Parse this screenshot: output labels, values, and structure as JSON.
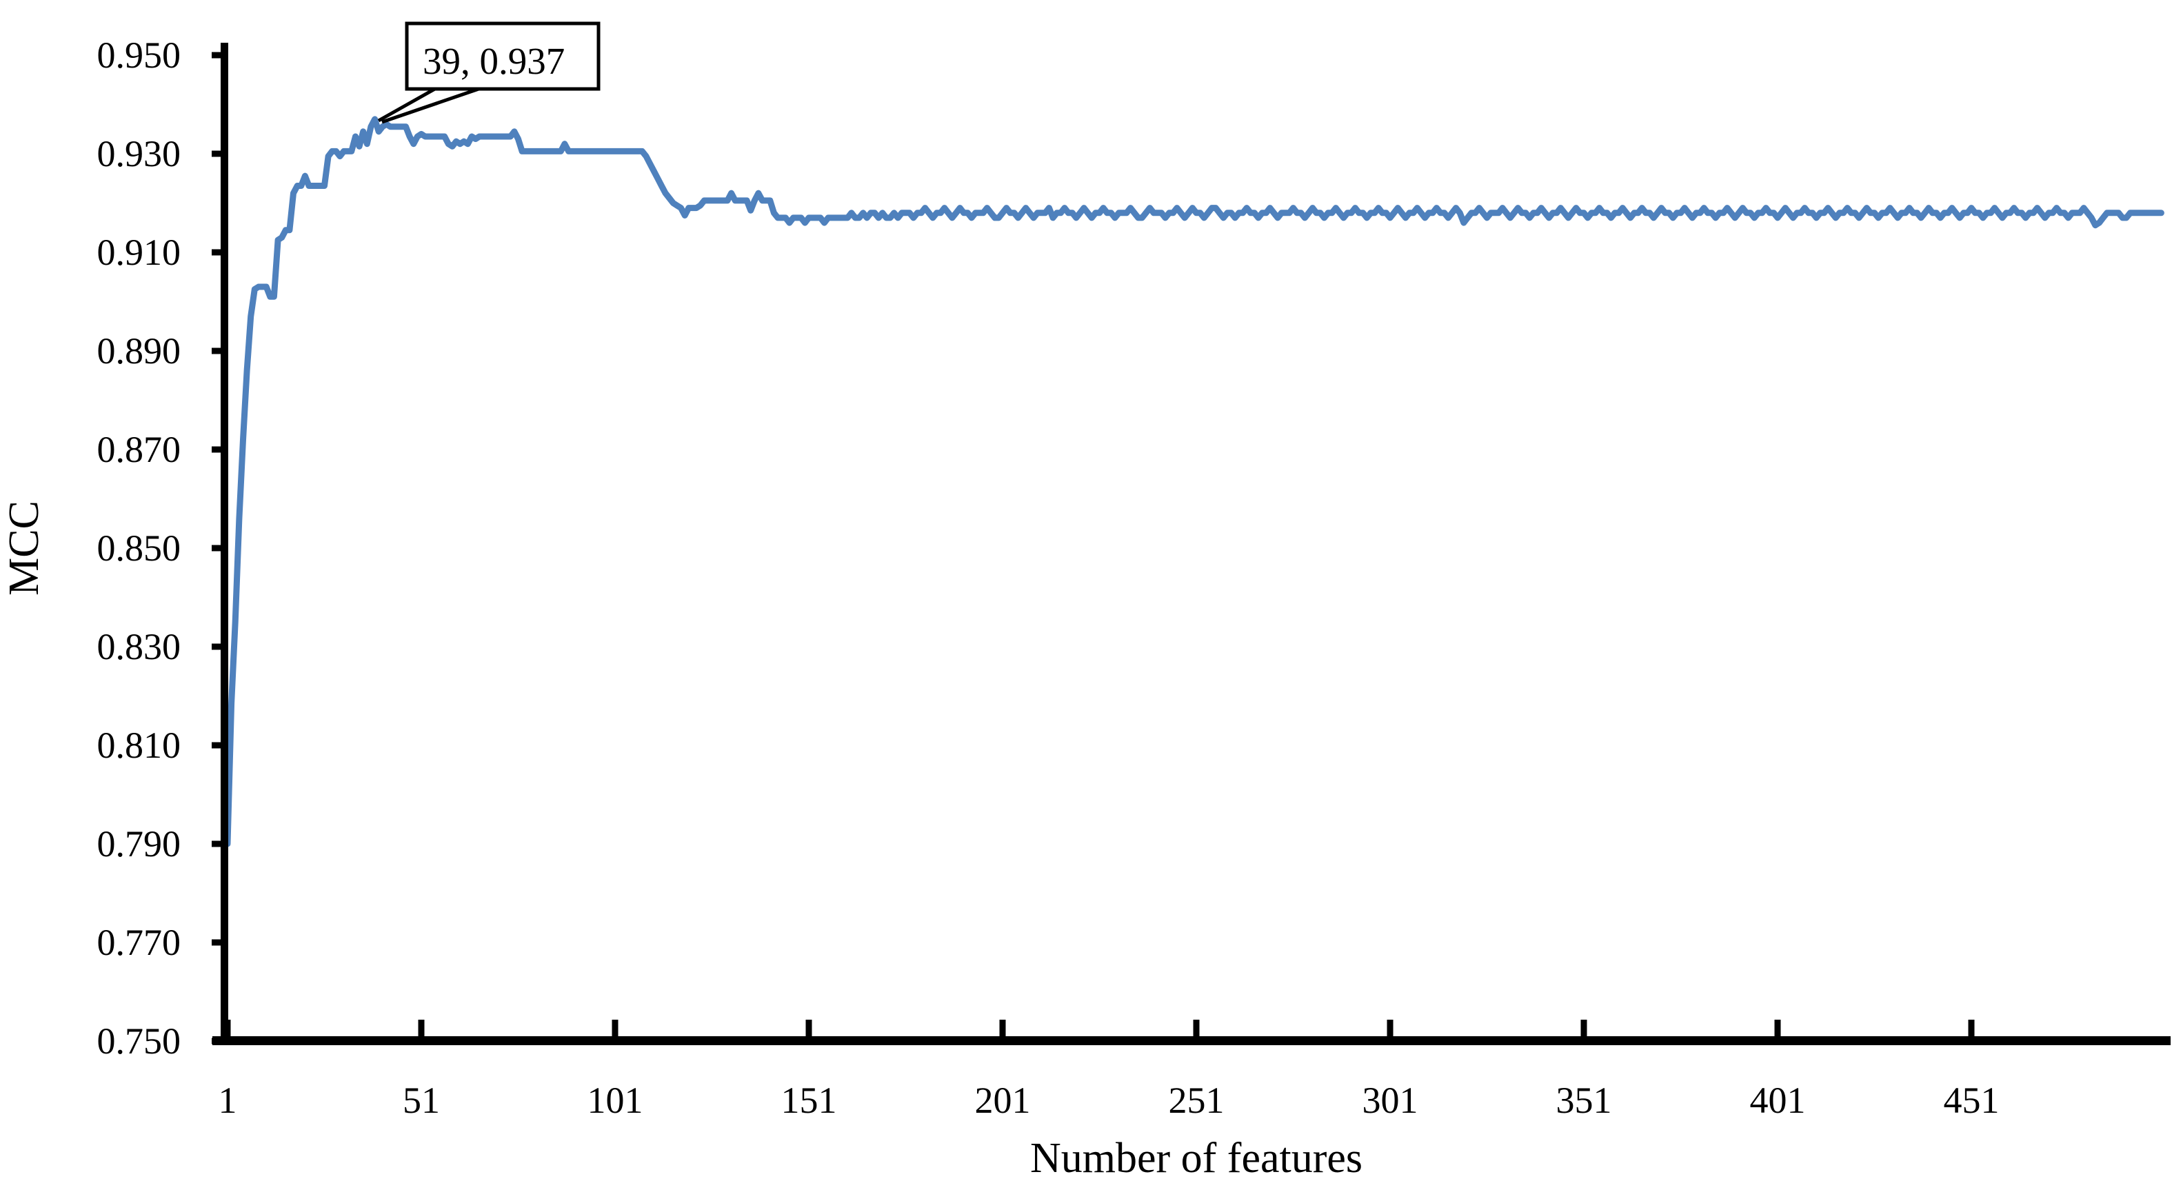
{
  "page": {
    "background": "#ffffff"
  },
  "chart_data": {
    "type": "line",
    "title": "",
    "xlabel": "Number of features",
    "ylabel": "MCC",
    "xlim": [
      1,
      502
    ],
    "ylim": [
      0.75,
      0.95
    ],
    "x_ticks": [
      1,
      51,
      101,
      151,
      201,
      251,
      301,
      351,
      401,
      451
    ],
    "y_tick_labels": [
      "0.950",
      "0.930",
      "0.910",
      "0.890",
      "0.870",
      "0.850",
      "0.830",
      "0.810",
      "0.790",
      "0.770",
      "0.750"
    ],
    "grid": false,
    "legend_position": "none",
    "line_color": "#4F81BD",
    "axis_color": "#000000",
    "annotation": {
      "label": "39, 0.937",
      "x": 39,
      "y": 0.937
    },
    "series": [
      {
        "name": "MCC",
        "x_start": 1,
        "x_step": 1,
        "values": [
          0.79,
          0.8185,
          0.835,
          0.856,
          0.872,
          0.886,
          0.897,
          0.9025,
          0.903,
          0.903,
          0.903,
          0.901,
          0.901,
          0.9125,
          0.913,
          0.9145,
          0.9145,
          0.922,
          0.9235,
          0.9235,
          0.9255,
          0.9235,
          0.9235,
          0.9235,
          0.9235,
          0.9235,
          0.9295,
          0.9305,
          0.9305,
          0.9295,
          0.9305,
          0.9305,
          0.9305,
          0.9335,
          0.9315,
          0.9345,
          0.932,
          0.9355,
          0.937,
          0.9345,
          0.9355,
          0.936,
          0.9355,
          0.9355,
          0.9355,
          0.9355,
          0.9355,
          0.9335,
          0.932,
          0.9335,
          0.934,
          0.9335,
          0.9335,
          0.9335,
          0.9335,
          0.9335,
          0.9335,
          0.932,
          0.9315,
          0.9325,
          0.932,
          0.9325,
          0.932,
          0.9335,
          0.933,
          0.9335,
          0.9335,
          0.9335,
          0.9335,
          0.9335,
          0.9335,
          0.9335,
          0.9335,
          0.9335,
          0.9345,
          0.933,
          0.9305,
          0.9305,
          0.9305,
          0.9305,
          0.9305,
          0.9305,
          0.9305,
          0.9305,
          0.9305,
          0.9305,
          0.9305,
          0.932,
          0.9305,
          0.9305,
          0.9305,
          0.9305,
          0.9305,
          0.9305,
          0.9305,
          0.9305,
          0.9305,
          0.9305,
          0.9305,
          0.9305,
          0.9305,
          0.9305,
          0.9305,
          0.9305,
          0.9305,
          0.9305,
          0.9305,
          0.9305,
          0.9295,
          0.928,
          0.9265,
          0.925,
          0.9235,
          0.922,
          0.921,
          0.92,
          0.9195,
          0.919,
          0.9175,
          0.919,
          0.919,
          0.919,
          0.9195,
          0.9205,
          0.9205,
          0.9205,
          0.9205,
          0.9205,
          0.9205,
          0.9205,
          0.922,
          0.9205,
          0.9205,
          0.9205,
          0.9205,
          0.9185,
          0.9205,
          0.922,
          0.9205,
          0.9205,
          0.9205,
          0.918,
          0.917,
          0.917,
          0.917,
          0.916,
          0.917,
          0.917,
          0.917,
          0.916,
          0.917,
          0.917,
          0.917,
          0.917,
          0.916,
          0.917,
          0.917,
          0.917,
          0.917,
          0.917,
          0.917,
          0.918,
          0.917,
          0.917,
          0.918,
          0.917,
          0.918,
          0.918,
          0.917,
          0.918,
          0.917,
          0.917,
          0.918,
          0.917,
          0.918,
          0.918,
          0.918,
          0.917,
          0.918,
          0.918,
          0.919,
          0.918,
          0.917,
          0.918,
          0.918,
          0.919,
          0.918,
          0.917,
          0.918,
          0.919,
          0.918,
          0.918,
          0.917,
          0.918,
          0.918,
          0.918,
          0.919,
          0.918,
          0.917,
          0.917,
          0.918,
          0.919,
          0.918,
          0.918,
          0.917,
          0.918,
          0.919,
          0.918,
          0.917,
          0.918,
          0.918,
          0.918,
          0.919,
          0.917,
          0.918,
          0.918,
          0.919,
          0.918,
          0.918,
          0.917,
          0.918,
          0.919,
          0.918,
          0.917,
          0.918,
          0.918,
          0.919,
          0.918,
          0.918,
          0.917,
          0.918,
          0.918,
          0.918,
          0.919,
          0.918,
          0.917,
          0.917,
          0.918,
          0.919,
          0.918,
          0.918,
          0.918,
          0.917,
          0.918,
          0.918,
          0.919,
          0.918,
          0.917,
          0.918,
          0.919,
          0.918,
          0.918,
          0.917,
          0.918,
          0.919,
          0.919,
          0.918,
          0.917,
          0.918,
          0.918,
          0.917,
          0.918,
          0.918,
          0.919,
          0.918,
          0.918,
          0.917,
          0.918,
          0.918,
          0.919,
          0.918,
          0.917,
          0.918,
          0.918,
          0.918,
          0.919,
          0.918,
          0.918,
          0.917,
          0.918,
          0.919,
          0.918,
          0.918,
          0.917,
          0.918,
          0.918,
          0.919,
          0.918,
          0.917,
          0.918,
          0.918,
          0.919,
          0.918,
          0.918,
          0.917,
          0.918,
          0.918,
          0.919,
          0.918,
          0.918,
          0.917,
          0.918,
          0.919,
          0.918,
          0.917,
          0.918,
          0.918,
          0.919,
          0.918,
          0.917,
          0.918,
          0.918,
          0.919,
          0.918,
          0.918,
          0.917,
          0.918,
          0.919,
          0.918,
          0.916,
          0.917,
          0.918,
          0.918,
          0.919,
          0.918,
          0.917,
          0.918,
          0.918,
          0.918,
          0.919,
          0.918,
          0.917,
          0.918,
          0.919,
          0.918,
          0.918,
          0.917,
          0.918,
          0.918,
          0.919,
          0.918,
          0.917,
          0.918,
          0.918,
          0.919,
          0.918,
          0.917,
          0.918,
          0.919,
          0.918,
          0.918,
          0.917,
          0.918,
          0.918,
          0.919,
          0.918,
          0.918,
          0.917,
          0.918,
          0.918,
          0.919,
          0.918,
          0.917,
          0.918,
          0.918,
          0.919,
          0.918,
          0.918,
          0.917,
          0.918,
          0.919,
          0.918,
          0.918,
          0.917,
          0.918,
          0.918,
          0.919,
          0.918,
          0.917,
          0.918,
          0.918,
          0.919,
          0.918,
          0.918,
          0.917,
          0.918,
          0.918,
          0.919,
          0.918,
          0.917,
          0.918,
          0.919,
          0.918,
          0.918,
          0.917,
          0.918,
          0.918,
          0.919,
          0.918,
          0.918,
          0.917,
          0.918,
          0.919,
          0.918,
          0.917,
          0.918,
          0.918,
          0.919,
          0.918,
          0.918,
          0.917,
          0.918,
          0.918,
          0.919,
          0.918,
          0.917,
          0.918,
          0.918,
          0.919,
          0.918,
          0.918,
          0.917,
          0.918,
          0.919,
          0.918,
          0.918,
          0.917,
          0.918,
          0.918,
          0.919,
          0.918,
          0.917,
          0.918,
          0.918,
          0.919,
          0.918,
          0.918,
          0.917,
          0.918,
          0.919,
          0.918,
          0.918,
          0.917,
          0.918,
          0.918,
          0.919,
          0.918,
          0.917,
          0.918,
          0.918,
          0.919,
          0.918,
          0.918,
          0.917,
          0.918,
          0.918,
          0.919,
          0.918,
          0.917,
          0.918,
          0.918,
          0.919,
          0.918,
          0.918,
          0.917,
          0.918,
          0.918,
          0.919,
          0.918,
          0.917,
          0.918,
          0.918,
          0.919,
          0.918,
          0.918,
          0.917,
          0.918,
          0.918,
          0.918,
          0.919,
          0.918,
          0.917,
          0.9155,
          0.916,
          0.917,
          0.918,
          0.918,
          0.918,
          0.918,
          0.917,
          0.917,
          0.918,
          0.918,
          0.918,
          0.918,
          0.918,
          0.918,
          0.918,
          0.918,
          0.918
        ]
      }
    ]
  }
}
